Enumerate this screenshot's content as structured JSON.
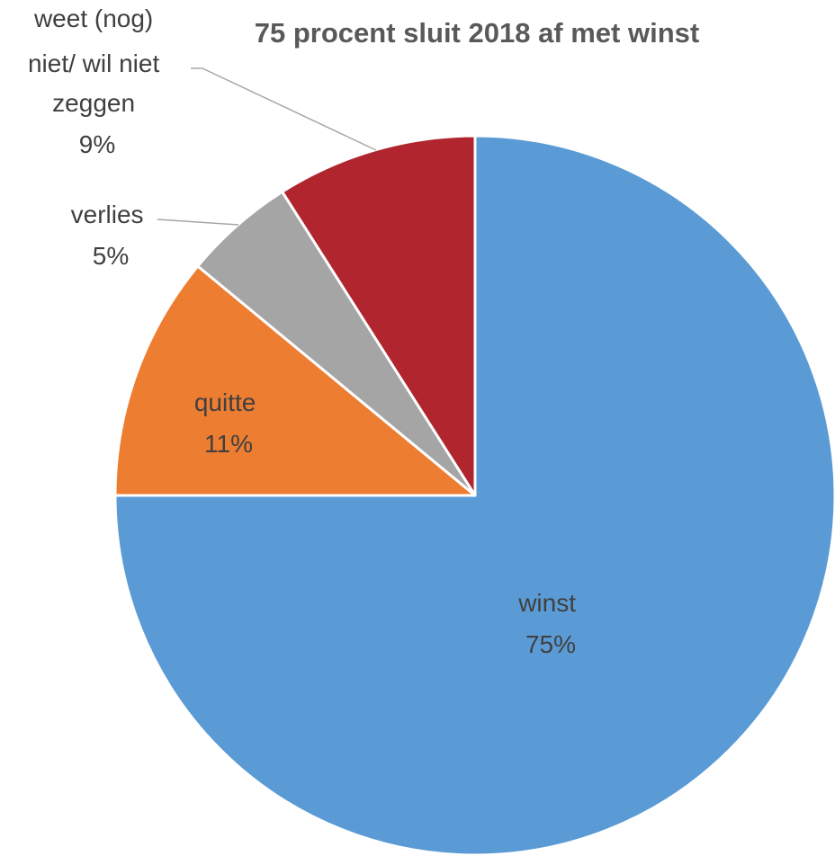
{
  "chart_data": {
    "type": "pie",
    "title": "75 procent sluit 2018 af met winst",
    "slices": [
      {
        "label": "winst",
        "percent_label": "75%",
        "value": 75,
        "color": "#5b9bd5"
      },
      {
        "label": "quitte",
        "percent_label": "11%",
        "value": 11,
        "color": "#ed7d31"
      },
      {
        "label": "verlies",
        "percent_label": "5%",
        "value": 5,
        "color": "#a5a5a5"
      },
      {
        "label_lines": [
          "weet (nog)",
          "niet/ wil niet",
          "zeggen"
        ],
        "percent_label": "9%",
        "value": 9,
        "color": "#b0252e"
      }
    ]
  }
}
